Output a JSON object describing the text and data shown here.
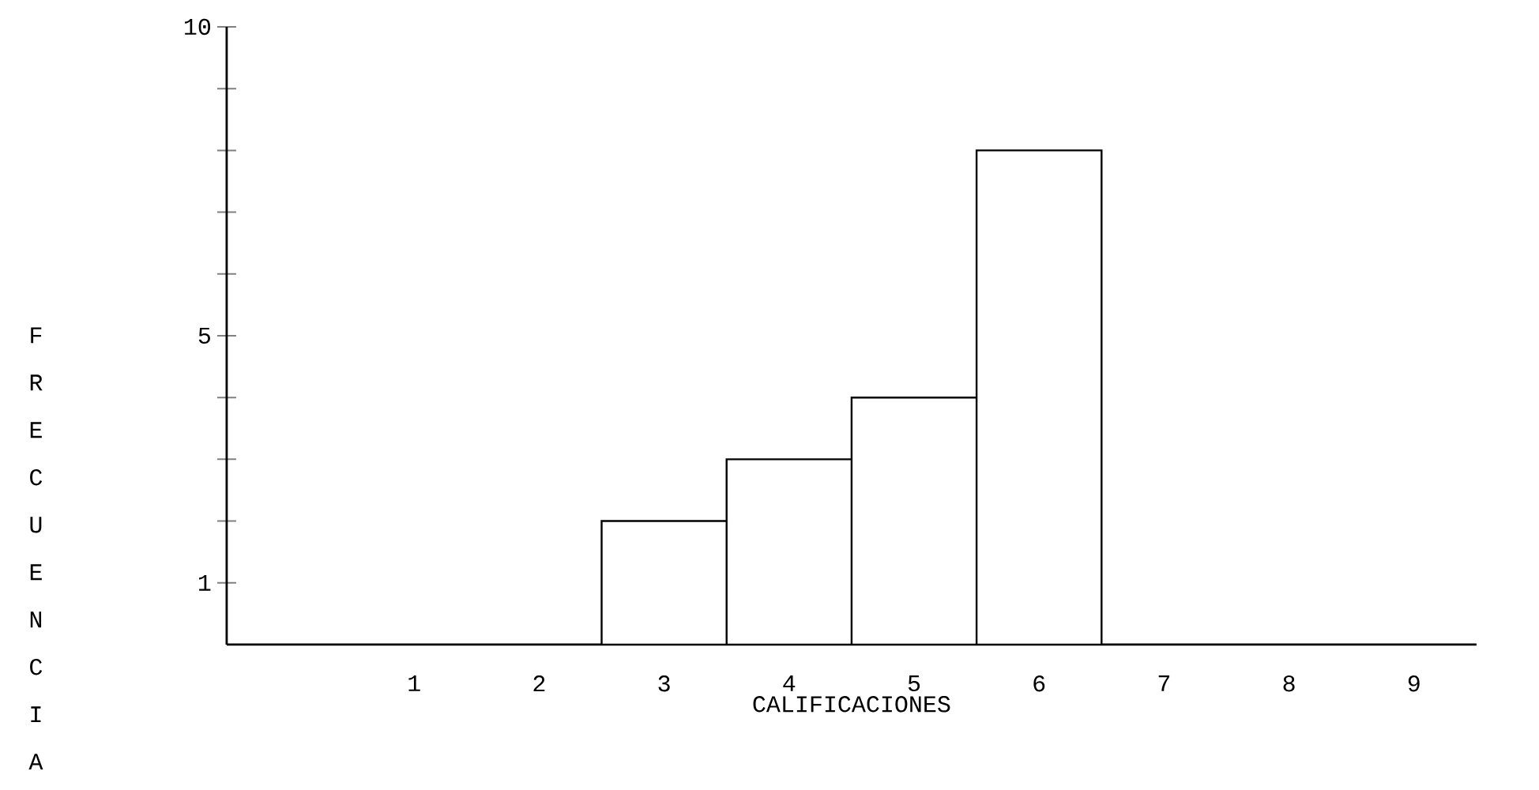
{
  "chart_data": {
    "type": "histogram",
    "xlabel": "CALIFICACIONES",
    "ylabel": "FRECUENCIA",
    "bins": [
      2.5,
      3.5,
      4.5,
      5.5,
      6.5
    ],
    "values": [
      2,
      3,
      4,
      8
    ],
    "color": "#ffffff",
    "xlim": [
      -0.5,
      9.5
    ],
    "xticks": [
      1,
      2,
      3,
      4,
      5,
      6,
      7,
      8,
      9
    ],
    "ylim": [
      0,
      10
    ],
    "yticks": [
      1,
      {
        "value": 2,
        "label": null
      },
      {
        "value": 3,
        "label": null
      },
      {
        "value": 4,
        "label": null
      },
      5,
      {
        "value": 6,
        "label": null
      },
      {
        "value": 7,
        "label": null
      },
      {
        "value": 8,
        "label": null
      },
      {
        "value": 9,
        "label": null
      },
      10
    ]
  }
}
